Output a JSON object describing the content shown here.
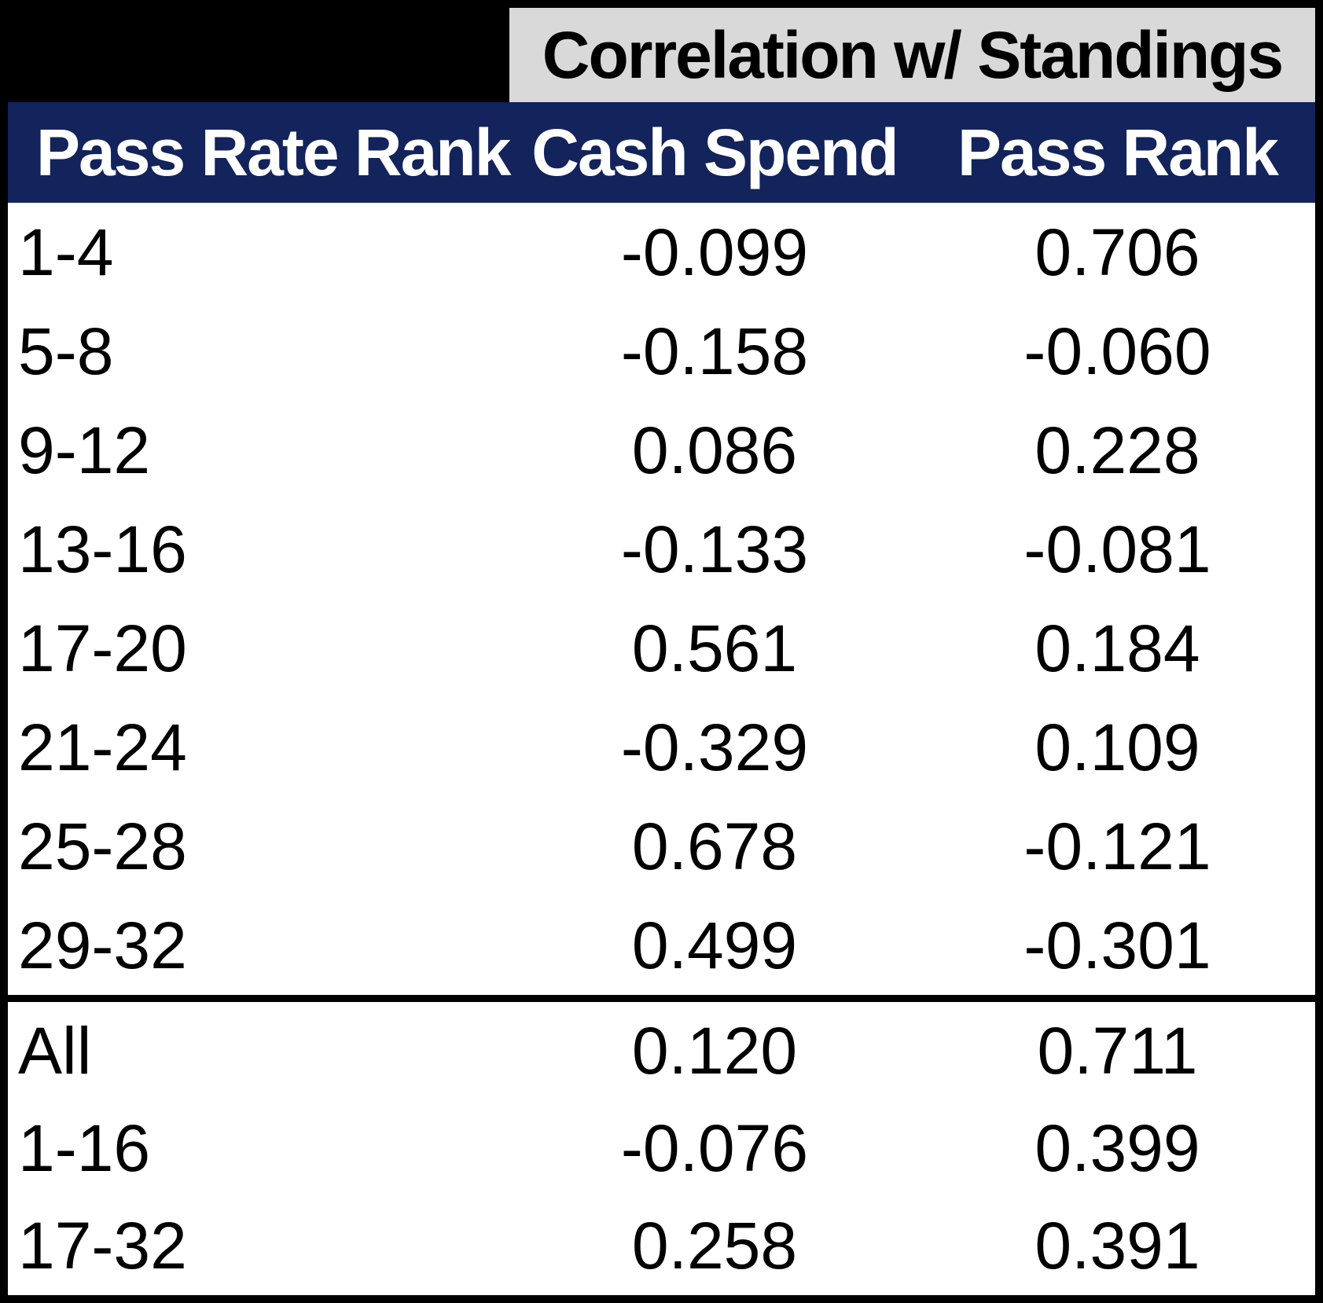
{
  "colors": {
    "page_background": "#000000",
    "spanner_background": "#d9d9d9",
    "header_background": "#13235b",
    "header_text": "#ffffff",
    "body_background": "#ffffff",
    "body_text": "#000000",
    "separator": "#000000"
  },
  "spanner": {
    "label": "Correlation w/ Standings"
  },
  "header": {
    "col1": "Pass Rate Rank",
    "col2": "Cash Spend",
    "col3": "Pass Rank"
  },
  "table": {
    "rows_main": [
      {
        "label": "1-4",
        "cash_spend": "-0.099",
        "pass_rank": "0.706"
      },
      {
        "label": "5-8",
        "cash_spend": "-0.158",
        "pass_rank": "-0.060"
      },
      {
        "label": "9-12",
        "cash_spend": "0.086",
        "pass_rank": "0.228"
      },
      {
        "label": "13-16",
        "cash_spend": "-0.133",
        "pass_rank": "-0.081"
      },
      {
        "label": "17-20",
        "cash_spend": "0.561",
        "pass_rank": "0.184"
      },
      {
        "label": "21-24",
        "cash_spend": "-0.329",
        "pass_rank": "0.109"
      },
      {
        "label": "25-28",
        "cash_spend": "0.678",
        "pass_rank": "-0.121"
      },
      {
        "label": "29-32",
        "cash_spend": "0.499",
        "pass_rank": "-0.301"
      }
    ],
    "rows_summary": [
      {
        "label": "All",
        "cash_spend": "0.120",
        "pass_rank": "0.711"
      },
      {
        "label": "1-16",
        "cash_spend": "-0.076",
        "pass_rank": "0.399"
      },
      {
        "label": "17-32",
        "cash_spend": "0.258",
        "pass_rank": "0.391"
      }
    ]
  },
  "chart_data": {
    "type": "table",
    "title": "Correlation w/ Standings",
    "columns": [
      "Pass Rate Rank",
      "Cash Spend",
      "Pass Rank"
    ],
    "categories": [
      "1-4",
      "5-8",
      "9-12",
      "13-16",
      "17-20",
      "21-24",
      "25-28",
      "29-32",
      "All",
      "1-16",
      "17-32"
    ],
    "series": [
      {
        "name": "Cash Spend",
        "values": [
          -0.099,
          -0.158,
          0.086,
          -0.133,
          0.561,
          -0.329,
          0.678,
          0.499,
          0.12,
          -0.076,
          0.258
        ]
      },
      {
        "name": "Pass Rank",
        "values": [
          0.706,
          -0.06,
          0.228,
          -0.081,
          0.184,
          0.109,
          -0.121,
          -0.301,
          0.711,
          0.399,
          0.391
        ]
      }
    ],
    "layout": {
      "summary_rows_start_index": 8,
      "summary_separator": "thick-black-line",
      "grid": "off"
    }
  }
}
